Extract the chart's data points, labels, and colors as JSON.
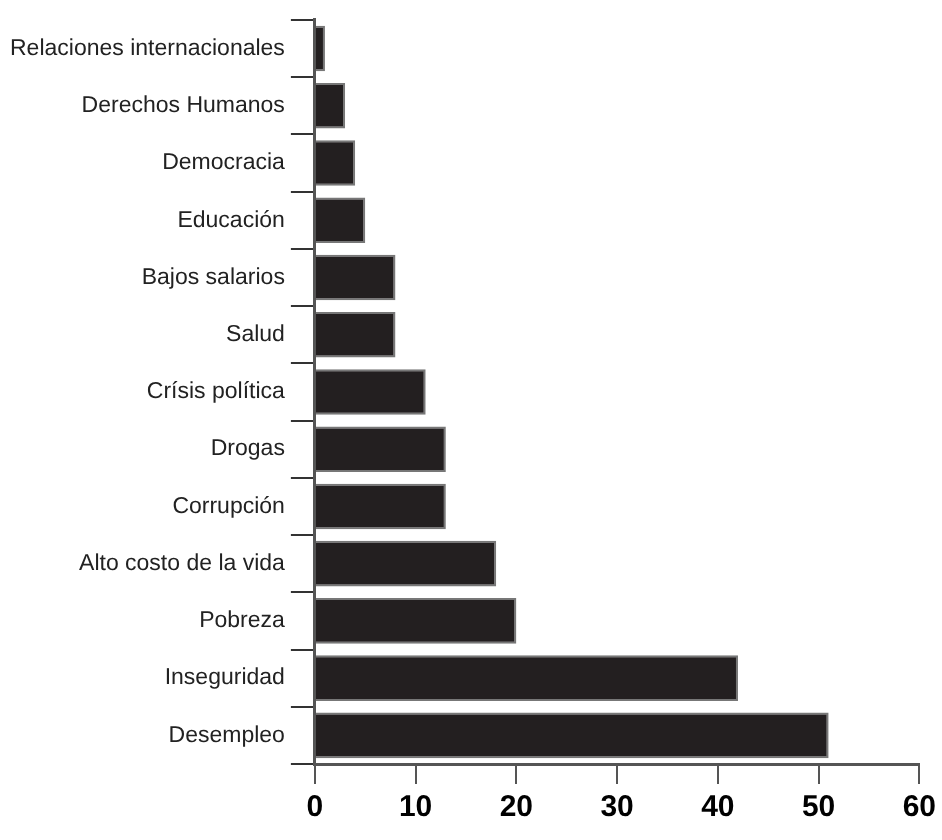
{
  "chart_data": {
    "type": "bar",
    "orientation": "horizontal",
    "categories": [
      "Relaciones internacionales",
      "Derechos Humanos",
      "Democracia",
      "Educación",
      "Bajos salarios",
      "Salud",
      "Crísis política",
      "Drogas",
      "Corrupción",
      "Alto costo de la vida",
      "Pobreza",
      "Inseguridad",
      "Desempleo"
    ],
    "values": [
      1,
      3,
      4,
      5,
      8,
      8,
      11,
      13,
      13,
      18,
      20,
      42,
      51
    ],
    "color": "#231f20",
    "xlim": [
      0,
      60
    ],
    "xticks": [
      0,
      10,
      20,
      30,
      40,
      50,
      60
    ],
    "grid": false,
    "legend": false
  }
}
